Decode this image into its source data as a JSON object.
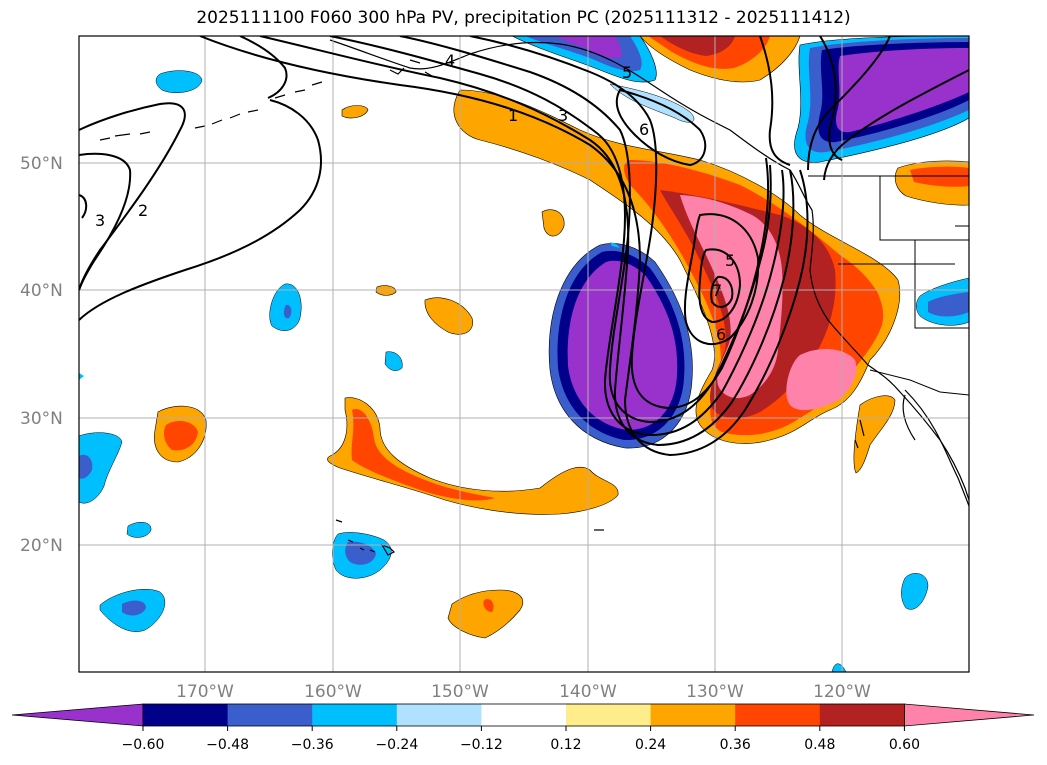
{
  "title": "2025111100 F060 300 hPa PV, precipitation PC (2025111312 - 2025111412)",
  "lat_ticks": [
    "50°N",
    "40°N",
    "30°N",
    "20°N"
  ],
  "lon_ticks": [
    "170°W",
    "160°W",
    "150°W",
    "140°W",
    "130°W",
    "120°W"
  ],
  "colorbar": {
    "colors": [
      "#9932cc",
      "#00008b",
      "#3a5fcd",
      "#00bfff",
      "#b0e2ff",
      "#ffffff",
      "#ffec8b",
      "#ffa500",
      "#ff4500",
      "#b22222",
      "#ff82ab"
    ],
    "tick_labels": [
      "−0.60",
      "−0.48",
      "−0.36",
      "−0.24",
      "−0.12",
      "0.12",
      "0.24",
      "0.36",
      "0.48",
      "0.60"
    ]
  },
  "pv_contour_labels": [
    "4",
    "1",
    "3",
    "6",
    "5",
    "5",
    "7",
    "6",
    "3",
    "2"
  ]
}
